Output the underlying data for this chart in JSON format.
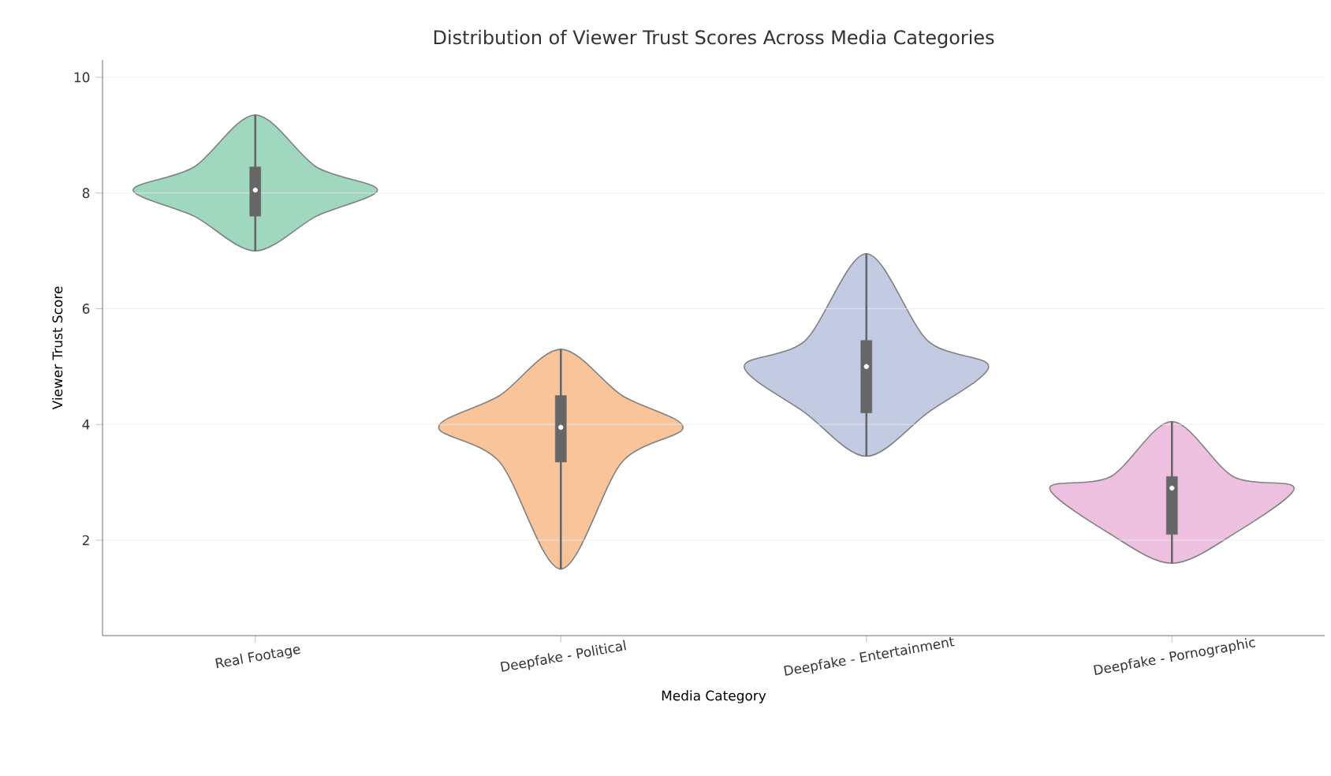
{
  "chart_data": {
    "type": "box",
    "title": "Distribution of Viewer Trust Scores Across Media Categories",
    "xlabel": "Media Category",
    "ylabel": "Viewer Trust Score",
    "categories": [
      "Real Footage",
      "Deepfake - Political",
      "Deepfake - Entertainment",
      "Deepfake - Pornographic"
    ],
    "boxes": [
      {
        "low": 7.0,
        "q1": 7.6,
        "median": 8.05,
        "q3": 8.45,
        "high": 9.35
      },
      {
        "low": 1.5,
        "q1": 3.35,
        "median": 3.95,
        "q3": 4.5,
        "high": 5.3
      },
      {
        "low": 3.45,
        "q1": 4.2,
        "median": 5.0,
        "q3": 5.45,
        "high": 6.95
      },
      {
        "low": 1.6,
        "q1": 2.1,
        "median": 2.9,
        "q3": 3.1,
        "high": 4.05
      }
    ],
    "ylim": [
      0.35,
      10.3
    ],
    "yticks": [
      2,
      4,
      6,
      8,
      10
    ],
    "grid": "y"
  }
}
